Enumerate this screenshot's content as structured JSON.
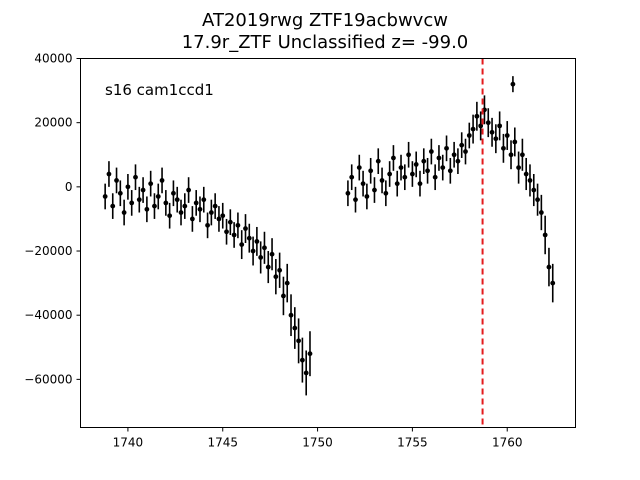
{
  "title": {
    "line1": "AT2019rwg  ZTF19acbwvcw",
    "line2": "17.9r_ZTF Unclassified z= -99.0"
  },
  "annotation": "s16 cam1ccd1",
  "colors": {
    "points": "#000000",
    "marker_line": "#e41a1c",
    "frame": "#000000",
    "background": "#ffffff"
  },
  "chart_data": {
    "type": "scatter",
    "title": "AT2019rwg  ZTF19acbwvcw\n17.9r_ZTF Unclassified z= -99.0",
    "xlabel": "",
    "ylabel": "",
    "xlim": [
      1737.5,
      1763.6
    ],
    "ylim": [
      -75000,
      40000
    ],
    "xticks": [
      1740,
      1745,
      1750,
      1755,
      1760
    ],
    "xtick_labels": [
      "1740",
      "1745",
      "1750",
      "1755",
      "1760"
    ],
    "yticks": [
      -60000,
      -40000,
      -20000,
      0,
      20000,
      40000
    ],
    "ytick_labels": [
      "−60000",
      "−40000",
      "−20000",
      "0",
      "20000",
      "40000"
    ],
    "grid": false,
    "markers": "points with vertical error bars",
    "vertical_line": {
      "x": 1758.7,
      "style": "dashed",
      "color": "#e41a1c"
    },
    "series": [
      {
        "x": [
          1738.8,
          1739.0,
          1739.2,
          1739.4,
          1739.6,
          1739.8,
          1740.0,
          1740.2,
          1740.4,
          1740.6,
          1740.8,
          1741.0,
          1741.2,
          1741.4,
          1741.6,
          1741.8,
          1742.0,
          1742.2,
          1742.4,
          1742.6,
          1742.8,
          1743.0,
          1743.2,
          1743.4,
          1743.6,
          1743.8,
          1744.0,
          1744.2,
          1744.4,
          1744.6,
          1744.8,
          1745.0,
          1745.2,
          1745.4,
          1745.6,
          1745.8,
          1746.0,
          1746.2,
          1746.4,
          1746.6,
          1746.8,
          1747.0,
          1747.2,
          1747.4,
          1747.6,
          1747.8,
          1748.0,
          1748.2,
          1748.4,
          1748.6,
          1748.8,
          1749.0,
          1749.2,
          1749.4,
          1749.6,
          1751.6,
          1751.8,
          1752.0,
          1752.2,
          1752.4,
          1752.6,
          1752.8,
          1753.0,
          1753.2,
          1753.4,
          1753.6,
          1753.8,
          1754.0,
          1754.2,
          1754.4,
          1754.6,
          1754.8,
          1755.0,
          1755.2,
          1755.4,
          1755.6,
          1755.8,
          1756.0,
          1756.2,
          1756.4,
          1756.6,
          1756.8,
          1757.0,
          1757.2,
          1757.4,
          1757.6,
          1757.8,
          1758.0,
          1758.2,
          1758.4,
          1758.6,
          1758.8,
          1759.0,
          1759.2,
          1759.4,
          1759.6,
          1759.8,
          1760.0,
          1760.2,
          1760.4,
          1760.6,
          1760.8,
          1761.0,
          1761.2,
          1761.4,
          1761.6,
          1761.8,
          1762.0,
          1762.2,
          1762.4
        ],
        "y": [
          -3000,
          4000,
          -6000,
          2000,
          -2000,
          -8000,
          0,
          -5000,
          3000,
          -4000,
          -1000,
          -7000,
          1000,
          -6000,
          -3000,
          2000,
          -5000,
          -9000,
          -2000,
          -4000,
          -8000,
          -6000,
          -1000,
          -10000,
          -5000,
          -7000,
          -4000,
          -12000,
          -8000,
          -6000,
          -10000,
          -9000,
          -14000,
          -11000,
          -15000,
          -12000,
          -18000,
          -13000,
          -16000,
          -20000,
          -17000,
          -22000,
          -19000,
          -25000,
          -21000,
          -28000,
          -26000,
          -34000,
          -30000,
          -40000,
          -44000,
          -48000,
          -54000,
          -58000,
          -52000,
          -2000,
          3000,
          -4000,
          6000,
          1000,
          -3000,
          5000,
          -1000,
          8000,
          2000,
          -2000,
          4000,
          9000,
          1000,
          6000,
          3000,
          10000,
          4000,
          7000,
          1000,
          8000,
          5000,
          11000,
          3000,
          9000,
          6000,
          12000,
          5000,
          10000,
          8000,
          13000,
          11000,
          16000,
          18000,
          22000,
          19000,
          24000,
          20000,
          17000,
          15000,
          19000,
          12000,
          16000,
          10000,
          14000,
          6000,
          10000,
          4000,
          2000,
          -1000,
          -4000,
          -8000,
          -15000,
          -25000,
          -30000
        ],
        "yerr": [
          4000,
          4000,
          4000,
          4000,
          4000,
          4000,
          4000,
          4000,
          4000,
          4000,
          4000,
          4000,
          4000,
          4000,
          4000,
          4000,
          4000,
          4000,
          4000,
          4000,
          4000,
          4000,
          4000,
          4000,
          4000,
          4000,
          4000,
          4000,
          4000,
          4000,
          4000,
          4000,
          4000,
          4000,
          4000,
          4000,
          4500,
          4500,
          4500,
          4500,
          4500,
          5000,
          5000,
          5000,
          5000,
          5500,
          5500,
          6000,
          6000,
          6500,
          6500,
          7000,
          7000,
          7000,
          7000,
          4000,
          4000,
          4000,
          4000,
          4000,
          4000,
          4000,
          4000,
          4000,
          4000,
          4000,
          4000,
          4000,
          4000,
          4000,
          4000,
          4000,
          4000,
          4000,
          4000,
          4000,
          4000,
          4000,
          4000,
          4000,
          4000,
          4000,
          4000,
          4000,
          4000,
          4000,
          4000,
          4000,
          4500,
          4500,
          4500,
          4500,
          4500,
          4500,
          4500,
          4500,
          4500,
          4500,
          4500,
          4500,
          5000,
          5000,
          5000,
          5000,
          5000,
          5000,
          5500,
          6000,
          6000,
          6000
        ]
      }
    ],
    "outliers": [
      {
        "x": 1760.3,
        "y": 32000,
        "yerr": 2500
      }
    ]
  }
}
